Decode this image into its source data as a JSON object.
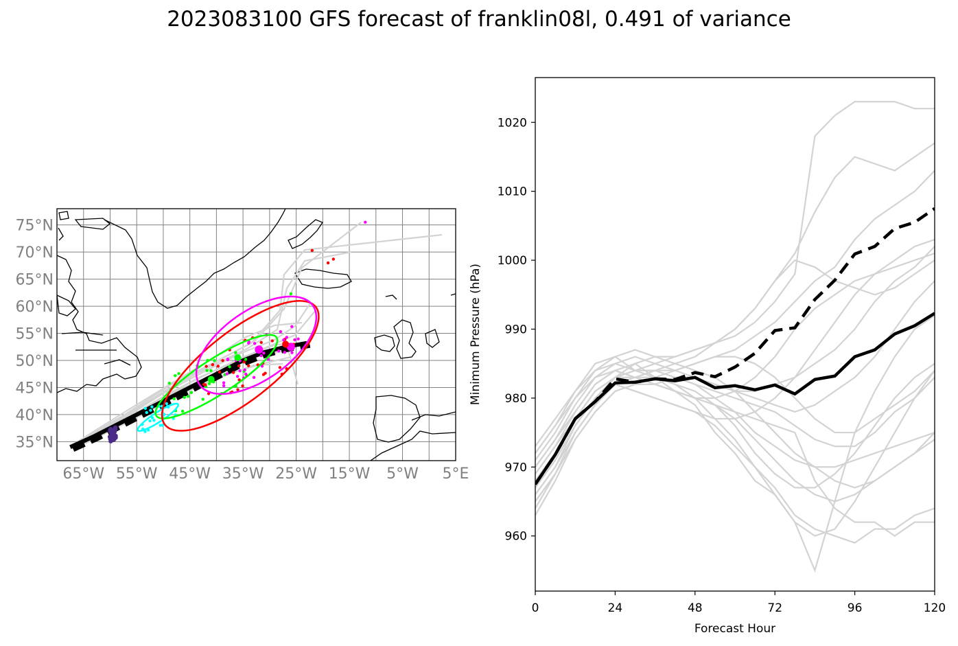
{
  "figure": {
    "title": "2023083100 GFS forecast of franklin08l, 0.491 of variance"
  },
  "colors": {
    "grey_track": "#d3d3d3",
    "grid": "#808080",
    "ensemble_mean": "#000000",
    "day1": "#4b2a8a",
    "day2": "#00ffff",
    "day3": "#00ff00",
    "day4": "#ff0000",
    "day5": "#ff00ff"
  },
  "chart_data": [
    {
      "type": "map",
      "lon_ticks": [
        "65°W",
        "55°W",
        "45°W",
        "35°W",
        "25°W",
        "15°W",
        "5°W",
        "5°E"
      ],
      "lat_ticks": [
        "75°N",
        "70°N",
        "65°N",
        "60°N",
        "55°N",
        "50°N",
        "45°N",
        "40°N",
        "35°N"
      ],
      "xlim": [
        -70,
        5
      ],
      "ylim": [
        31.5,
        78
      ],
      "grid": true,
      "mean_track": [
        [
          -67.5,
          34
        ],
        [
          -63,
          36
        ],
        [
          -59,
          38
        ],
        [
          -55,
          40
        ],
        [
          -51,
          42
        ],
        [
          -47,
          44
        ],
        [
          -43,
          46
        ],
        [
          -39,
          48
        ],
        [
          -35,
          50
        ],
        [
          -31,
          51.5
        ],
        [
          -27,
          52.5
        ],
        [
          -23,
          53.2
        ]
      ],
      "ellipses": [
        {
          "color": "day2",
          "center": [
            -51,
            39.5
          ],
          "semi_axes": [
            4.5,
            0.9
          ],
          "angle_deg": 33
        },
        {
          "color": "day3",
          "center": [
            -40,
            47
          ],
          "semi_axes": [
            13.5,
            3.3
          ],
          "angle_deg": 33
        },
        {
          "color": "day4",
          "center": [
            -35.5,
            49
          ],
          "semi_axes": [
            18,
            6.5
          ],
          "angle_deg": 38
        },
        {
          "color": "day5",
          "center": [
            -32.5,
            52.8
          ],
          "semi_axes": [
            13,
            6.5
          ],
          "angle_deg": 35
        }
      ]
    },
    {
      "type": "line",
      "xlabel": "Forecast Hour",
      "ylabel": "Minimum Pressure (hPa)",
      "xlim": [
        0,
        120
      ],
      "ylim": [
        952,
        1026.5
      ],
      "xticks": [
        0,
        24,
        48,
        72,
        96,
        120
      ],
      "yticks": [
        960,
        970,
        980,
        990,
        1000,
        1010,
        1020
      ],
      "x": [
        0,
        6,
        12,
        18,
        24,
        30,
        36,
        42,
        48,
        54,
        60,
        66,
        72,
        78,
        84,
        90,
        96,
        102,
        108,
        114,
        120
      ],
      "series": [
        {
          "style": "solid-black",
          "values": [
            967.5,
            971.8,
            977,
            979.5,
            982.2,
            982.3,
            982.8,
            982.5,
            983,
            981.5,
            981.8,
            981.2,
            981.9,
            980.6,
            982.7,
            983.2,
            986,
            987,
            989.3,
            990.5,
            992.3
          ]
        },
        {
          "style": "dashed-black",
          "values": [
            967.5,
            971.8,
            977,
            979.5,
            982.8,
            982.3,
            982.8,
            982.7,
            983.7,
            983.1,
            984.5,
            986.5,
            989.8,
            990.2,
            994.3,
            997.1,
            1000.9,
            1002,
            1004.6,
            1005.5,
            1007.5
          ]
        }
      ],
      "members": [
        [
          972,
          976,
          981,
          985,
          986,
          984,
          983,
          981,
          979,
          975,
          972,
          968,
          966,
          962,
          955,
          965,
          975,
          981,
          986,
          990,
          992
        ],
        [
          970,
          974,
          979,
          983,
          984,
          985,
          983,
          982,
          980,
          977,
          974,
          970,
          966,
          962,
          960,
          961,
          965,
          970,
          975,
          980,
          984
        ],
        [
          968,
          972,
          977,
          981,
          983,
          984,
          985,
          986,
          987,
          988,
          989,
          991,
          994,
          998,
          1018,
          1021,
          1023,
          1023,
          1023,
          1022,
          1022
        ],
        [
          966,
          970,
          976,
          980,
          982,
          983,
          984,
          985,
          986,
          988,
          990,
          993,
          997,
          1001,
          1007,
          1012,
          1015,
          1014,
          1013,
          1015,
          1017
        ],
        [
          969,
          973,
          978,
          982,
          984,
          983,
          982,
          981,
          980,
          979,
          978,
          977,
          976,
          975,
          968,
          964,
          962,
          962,
          960,
          962,
          962
        ],
        [
          964,
          969,
          975,
          979,
          982,
          981,
          980,
          979,
          978,
          976,
          973,
          970,
          967,
          963,
          961,
          960,
          959,
          961,
          961,
          963,
          964
        ],
        [
          971,
          975,
          980,
          984,
          986,
          987,
          986,
          985,
          984,
          983,
          981,
          978,
          975,
          972,
          970,
          968,
          967,
          968,
          970,
          972,
          975
        ],
        [
          967,
          971,
          976,
          980,
          983,
          982,
          983,
          984,
          985,
          986,
          987,
          989,
          991,
          994,
          997,
          999,
          1003,
          1006,
          1008,
          1010,
          1013
        ],
        [
          965,
          969,
          974,
          978,
          981,
          982,
          982,
          983,
          983,
          982,
          981,
          980,
          979,
          978,
          979,
          981,
          983,
          986,
          990,
          994,
          997
        ],
        [
          973,
          977,
          981,
          984,
          985,
          986,
          985,
          984,
          983,
          982,
          981,
          981,
          982,
          983,
          985,
          987,
          990,
          994,
          997,
          999,
          1002
        ],
        [
          966,
          970,
          975,
          979,
          982,
          981,
          980,
          979,
          978,
          977,
          977,
          978,
          980,
          983,
          987,
          991,
          995,
          998,
          1000,
          1002,
          1003
        ],
        [
          968,
          972,
          977,
          981,
          983,
          984,
          984,
          983,
          982,
          981,
          980,
          979,
          978,
          976,
          974,
          973,
          973,
          975,
          978,
          980,
          983
        ],
        [
          970,
          974,
          978,
          982,
          984,
          983,
          982,
          981,
          980,
          980,
          981,
          983,
          986,
          990,
          993,
          995,
          997,
          998,
          999,
          1000,
          1001
        ],
        [
          963,
          968,
          974,
          978,
          981,
          982,
          982,
          981,
          980,
          979,
          976,
          972,
          969,
          967,
          967,
          969,
          972,
          976,
          980,
          983,
          985
        ],
        [
          969,
          973,
          977,
          981,
          983,
          983,
          984,
          984,
          985,
          986,
          986,
          985,
          983,
          980,
          977,
          975,
          975,
          977,
          979,
          981,
          984
        ],
        [
          967,
          971,
          976,
          980,
          983,
          985,
          986,
          986,
          987,
          988,
          990,
          993,
          997,
          1000,
          999,
          997,
          996,
          995,
          996,
          998,
          1000
        ],
        [
          972,
          976,
          980,
          983,
          985,
          984,
          984,
          983,
          982,
          980,
          978,
          975,
          973,
          971,
          970,
          970,
          971,
          972,
          973,
          974,
          975
        ],
        [
          965,
          969,
          975,
          979,
          982,
          983,
          983,
          982,
          981,
          979,
          977,
          974,
          971,
          968,
          966,
          965,
          966,
          968,
          970,
          972,
          974
        ]
      ]
    }
  ]
}
